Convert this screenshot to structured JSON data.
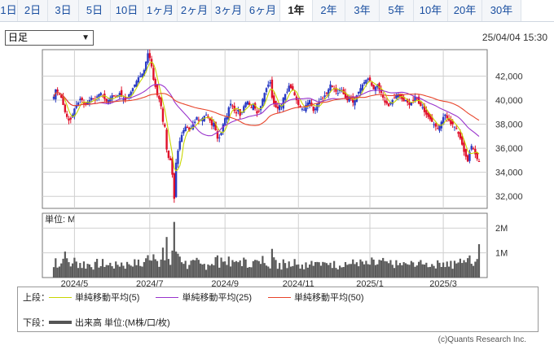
{
  "tabs": [
    {
      "label": "1日",
      "w": 22
    },
    {
      "label": "2日",
      "w": 37
    },
    {
      "label": "3日",
      "w": 38
    },
    {
      "label": "5日",
      "w": 39
    },
    {
      "label": "10日",
      "w": 40
    },
    {
      "label": "1ヶ月",
      "w": 42
    },
    {
      "label": "2ヶ月",
      "w": 42
    },
    {
      "label": "3ヶ月",
      "w": 42
    },
    {
      "label": "6ヶ月",
      "w": 42
    },
    {
      "label": "1年",
      "w": 40,
      "active": true
    },
    {
      "label": "2年",
      "w": 40
    },
    {
      "label": "3年",
      "w": 42
    },
    {
      "label": "5年",
      "w": 42
    },
    {
      "label": "10年",
      "w": 42
    },
    {
      "label": "20年",
      "w": 42
    },
    {
      "label": "30年",
      "w": 48
    }
  ],
  "period_select": {
    "value": "日足"
  },
  "timestamp": "25/04/04 15:30",
  "legend": {
    "upper_label": "上段：",
    "lower_label": "下段：",
    "ma": [
      {
        "label": "単純移動平均(5)",
        "color": "#c8d600"
      },
      {
        "label": "単純移動平均(25)",
        "color": "#9933cc"
      },
      {
        "label": "単純移動平均(50)",
        "color": "#e8442a"
      }
    ],
    "volume": {
      "label": "出来高 単位:(M株/口/枚)",
      "color": "#555555"
    }
  },
  "credit": "(c)Quants Research Inc.",
  "chart_data": {
    "type": "candlestick",
    "price_axis": {
      "ticks": [
        "42,000",
        "40,000",
        "38,000",
        "36,000",
        "34,000",
        "32,000"
      ],
      "tick_values": [
        42000,
        40000,
        38000,
        36000,
        34000,
        32000
      ],
      "ylim": [
        31000,
        44200
      ]
    },
    "volume_axis": {
      "unit_label": "単位: M",
      "ticks": [
        "2M",
        "1M"
      ],
      "tick_values": [
        2,
        1
      ],
      "ylim": [
        0,
        2.6
      ]
    },
    "x_labels": [
      "2024/5",
      "2024/7",
      "2024/9",
      "2024/11",
      "2025/1",
      "2025/3"
    ],
    "x_label_index": [
      11,
      51,
      91,
      130,
      168,
      207
    ],
    "up_color": "#2b3cc4",
    "down_color": "#e0102a",
    "close": [
      40300,
      40900,
      40700,
      40500,
      40200,
      39600,
      39000,
      38600,
      38300,
      38400,
      38800,
      39300,
      39600,
      39800,
      40100,
      40000,
      39700,
      39600,
      39800,
      40000,
      40200,
      40100,
      40000,
      40300,
      40500,
      40600,
      40300,
      40100,
      39900,
      40000,
      40200,
      40400,
      40300,
      40200,
      40400,
      40600,
      40300,
      40100,
      40000,
      40200,
      40500,
      40700,
      41000,
      41300,
      41600,
      41900,
      42000,
      42200,
      42500,
      43200,
      43900,
      43500,
      42800,
      41700,
      41100,
      40400,
      40100,
      39500,
      38200,
      37800,
      35900,
      35200,
      35000,
      33800,
      31800,
      34800,
      35800,
      36600,
      37100,
      37500,
      37800,
      37700,
      37400,
      37700,
      38000,
      38200,
      38600,
      38300,
      38400,
      38500,
      38700,
      38800,
      38500,
      38300,
      37900,
      38100,
      37500,
      36800,
      36900,
      37300,
      38000,
      38500,
      38600,
      39400,
      39700,
      39500,
      39100,
      38900,
      39200,
      38700,
      39000,
      39500,
      39800,
      39900,
      39600,
      39400,
      39700,
      39300,
      38900,
      39100,
      39500,
      40100,
      40600,
      41000,
      41300,
      41500,
      40200,
      39700,
      39400,
      39300,
      39600,
      39500,
      40200,
      40500,
      40700,
      41200,
      41000,
      40800,
      40400,
      40000,
      39600,
      39400,
      39300,
      39200,
      39600,
      39800,
      40000,
      39500,
      39100,
      39300,
      39700,
      39900,
      40100,
      40200,
      40400,
      40600,
      40900,
      41300,
      41100,
      40900,
      40700,
      40600,
      40900,
      40800,
      40500,
      40200,
      40000,
      40300,
      40100,
      39800,
      40000,
      40400,
      40700,
      41000,
      41300,
      41500,
      41700,
      41800,
      41600,
      41200,
      40900,
      41100,
      41300,
      40900,
      40600,
      40200,
      39800,
      39700,
      39500,
      39800,
      40000,
      40200,
      40400,
      40500,
      40300,
      40100,
      39900,
      40000,
      39800,
      39600,
      39800,
      40000,
      40300,
      40100,
      39700,
      39500,
      39400,
      39000,
      38800,
      38600,
      38400,
      38200,
      38000,
      37800,
      37600,
      37900,
      38200,
      38600,
      38800,
      38500,
      38300,
      38000,
      38000,
      37800,
      37600,
      37200,
      36800,
      36300,
      35700,
      35300,
      34900,
      35700,
      36200,
      35900,
      35500,
      35100,
      34900
    ]
  }
}
